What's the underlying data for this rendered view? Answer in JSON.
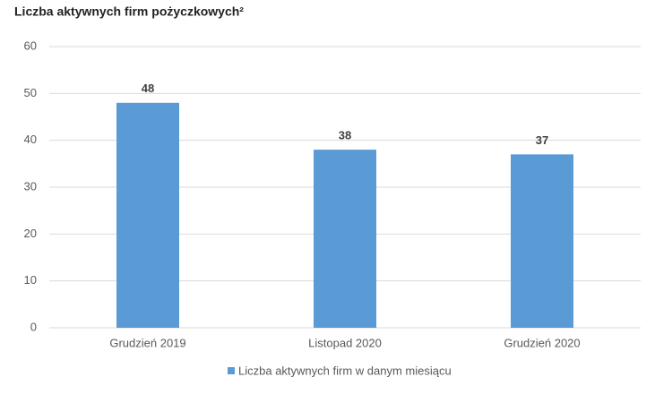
{
  "chart_data": {
    "type": "bar",
    "title": "Liczba aktywnych firm pożyczkowych²",
    "categories": [
      "Grudzień 2019",
      "Listopad 2020",
      "Grudzień 2020"
    ],
    "series": [
      {
        "name": "Liczba aktywnych firm w danym miesiącu",
        "color": "#5b9bd5",
        "values": [
          48,
          38,
          37
        ]
      }
    ],
    "ylim": [
      0,
      60
    ],
    "yticks": [
      0,
      10,
      20,
      30,
      40,
      50,
      60
    ],
    "grid": true,
    "legend": "bottom",
    "data_labels": true
  }
}
